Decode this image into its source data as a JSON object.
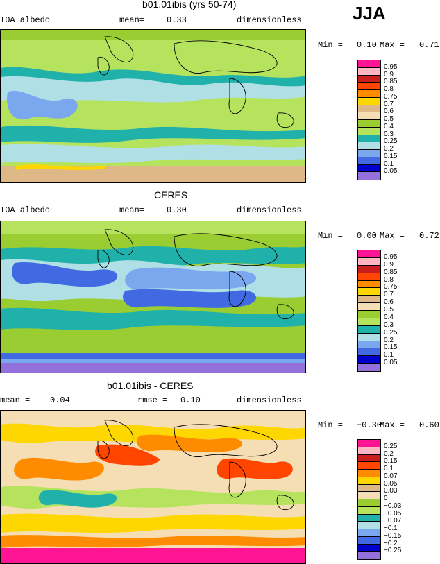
{
  "season_label": "JJA",
  "panels": [
    {
      "title": "b01.01ibis (yrs 50-74)",
      "left_label": "TOA albedo",
      "mid_label": "mean=",
      "mid_value": "0.33",
      "right_label": "dimensionless",
      "minmax": {
        "min_label": "Min =",
        "min": "0.10",
        "max_label": "Max =",
        "max": "0.71"
      },
      "legend": [
        "0.95",
        "0.9",
        "0.85",
        "0.8",
        "0.75",
        "0.7",
        "0.6",
        "0.5",
        "0.4",
        "0.3",
        "0.25",
        "0.2",
        "0.15",
        "0.1",
        "0.05"
      ],
      "bands_dominant": [
        "0.5",
        "0.3",
        "0.25",
        "0.3",
        "0.25",
        "0.4",
        "0.2",
        "0.3",
        "0.25",
        "0.4",
        "0.5",
        "0.6"
      ]
    },
    {
      "title": "CERES",
      "left_label": "TOA albedo",
      "mid_label": "mean=",
      "mid_value": "0.30",
      "right_label": "dimensionless",
      "minmax": {
        "min_label": "Min =",
        "min": "0.00",
        "max_label": "Max =",
        "max": "0.72"
      },
      "legend": [
        "0.95",
        "0.9",
        "0.85",
        "0.8",
        "0.75",
        "0.7",
        "0.6",
        "0.5",
        "0.4",
        "0.3",
        "0.25",
        "0.2",
        "0.15",
        "0.1",
        "0.05"
      ],
      "bands_dominant": [
        "0.5",
        "0.4",
        "0.25",
        "0.2",
        "0.25",
        "0.2",
        "0.3",
        "0.25",
        "0.3",
        "0.5",
        "0.1",
        "0.05"
      ]
    },
    {
      "title": "b01.01ibis - CERES",
      "left_label": "mean =",
      "left_value": "0.04",
      "mid_label": "rmse =",
      "mid_value": "0.10",
      "right_label": "dimensionless",
      "minmax": {
        "min_label": "Min =",
        "min": "−0.30",
        "max_label": "Max =",
        "max": "0.60"
      },
      "legend": [
        "0.25",
        "0.2",
        "0.15",
        "0.1",
        "0.07",
        "0.05",
        "0.03",
        "0",
        "−0.03",
        "−0.05",
        "−0.07",
        "−0.1",
        "−0.15",
        "−0.2",
        "−0.25"
      ],
      "bands_dominant": [
        "0.03",
        "0.07",
        "0.05",
        "0.03",
        "0.1",
        "0.05",
        "0",
        "0.03",
        "−0.03",
        "0.03",
        "0.05",
        "0.25"
      ]
    }
  ],
  "colors": {
    "abs": [
      "#ff1493",
      "#ffb6c1",
      "#c81e1e",
      "#ff4500",
      "#ff8c00",
      "#ffd700",
      "#fff3a0",
      "#deb887",
      "#f5deb3",
      "#9acd32",
      "#b6e35e",
      "#20b2aa",
      "#b0e0e6",
      "#7ba7ee",
      "#4169e1",
      "#0000cd",
      "#9370db"
    ],
    "legend_abs": [
      "#ff1493",
      "#ffb6c1",
      "#c81e1e",
      "#ff4500",
      "#ff8c00",
      "#ffd700",
      "#deb887",
      "#f5deb3",
      "#9acd32",
      "#b6e35e",
      "#20b2aa",
      "#b0e0e6",
      "#7ba7ee",
      "#4169e1",
      "#0000cd",
      "#9370db"
    ],
    "legend_diff": [
      "#ff1493",
      "#ffb6c1",
      "#c81e1e",
      "#ff4500",
      "#ff8c00",
      "#ffd700",
      "#deb887",
      "#f5deb3",
      "#9acd32",
      "#b6e35e",
      "#20b2aa",
      "#b0e0e6",
      "#7ba7ee",
      "#4169e1",
      "#0000cd",
      "#9370db"
    ]
  }
}
